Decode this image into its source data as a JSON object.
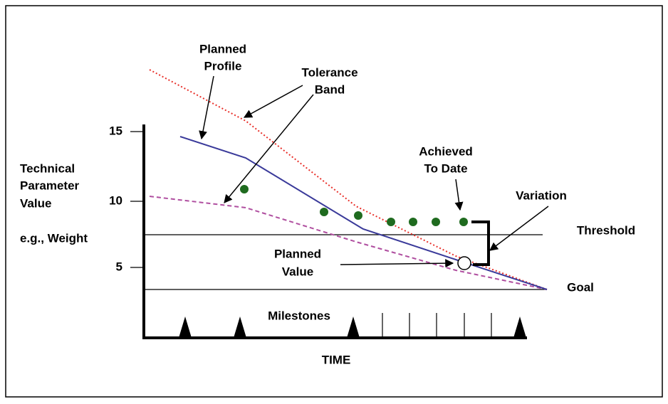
{
  "labels": {
    "planned_profile": [
      "Planned",
      "Profile"
    ],
    "tolerance_band": [
      "Tolerance",
      "Band"
    ],
    "y_axis": [
      "Technical",
      "Parameter",
      "Value"
    ],
    "y_axis_example": "e.g., Weight",
    "achieved_to_date": [
      "Achieved",
      "To Date"
    ],
    "variation": "Variation",
    "threshold": "Threshold",
    "planned_value": [
      "Planned",
      "Value"
    ],
    "goal": "Goal",
    "milestones": "Milestones",
    "x_axis": "TIME"
  },
  "yticks": [
    "15",
    "10",
    "5"
  ]
}
